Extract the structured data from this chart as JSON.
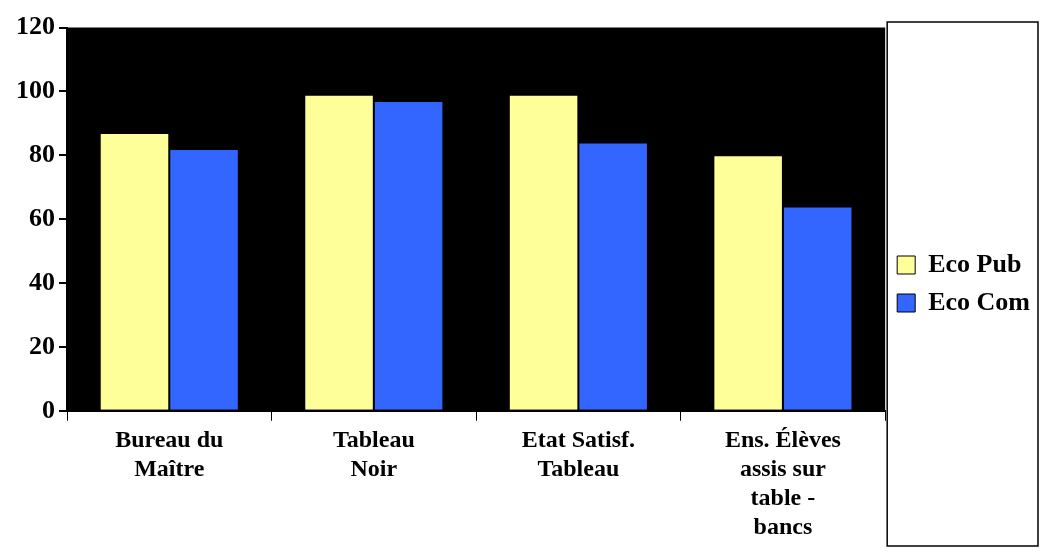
{
  "chart_data": {
    "type": "bar",
    "categories": [
      "Bureau du Maître",
      "Tableau Noir",
      "Etat Satisf. Tableau",
      "Ens. Élèves assis sur table - bancs"
    ],
    "series": [
      {
        "name": "Eco Pub",
        "color": "#ffff99",
        "values": [
          87,
          99,
          99,
          80
        ]
      },
      {
        "name": "Eco Com",
        "color": "#3366ff",
        "values": [
          82,
          97,
          84,
          64
        ]
      }
    ],
    "ylim": [
      0,
      120
    ],
    "yticks": [
      0,
      20,
      40,
      60,
      80,
      100,
      120
    ],
    "grid": false,
    "legend": "right"
  }
}
